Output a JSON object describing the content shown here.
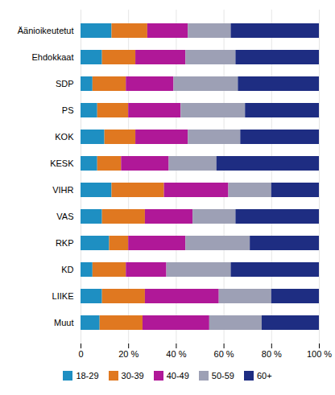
{
  "chart_data": {
    "type": "bar",
    "orientation": "horizontal",
    "stacked": true,
    "categories": [
      "Äänioikeutetut",
      "Ehdokkaat",
      "SDP",
      "PS",
      "KOK",
      "KESK",
      "VIHR",
      "VAS",
      "RKP",
      "KD",
      "LIIKE",
      "Muut"
    ],
    "series": [
      {
        "name": "18-29",
        "color": "#1E8FC2",
        "values": [
          13,
          9,
          5,
          7,
          10,
          7,
          13,
          9,
          12,
          5,
          9,
          8
        ]
      },
      {
        "name": "30-39",
        "color": "#E07820",
        "values": [
          15,
          14,
          14,
          13,
          13,
          10,
          22,
          18,
          8,
          14,
          18,
          18
        ]
      },
      {
        "name": "40-49",
        "color": "#B01898",
        "values": [
          17,
          21,
          20,
          22,
          22,
          20,
          27,
          20,
          24,
          17,
          31,
          28
        ]
      },
      {
        "name": "50-59",
        "color": "#9DA0B5",
        "values": [
          18,
          21,
          27,
          27,
          22,
          20,
          18,
          18,
          27,
          27,
          22,
          22
        ]
      },
      {
        "name": "60+",
        "color": "#1E2D82",
        "values": [
          37,
          35,
          34,
          31,
          33,
          43,
          20,
          35,
          29,
          37,
          20,
          24
        ]
      }
    ],
    "xlim": [
      0,
      100
    ],
    "xticks": [
      0,
      {
        "value": 20,
        "label": "20 %"
      },
      {
        "value": 40,
        "label": "40 %"
      },
      {
        "value": 60,
        "label": "60 %"
      },
      {
        "value": 80,
        "label": "80 %"
      },
      {
        "value": 100,
        "label": "100 %"
      }
    ],
    "grid": true,
    "legend": "bottom"
  }
}
